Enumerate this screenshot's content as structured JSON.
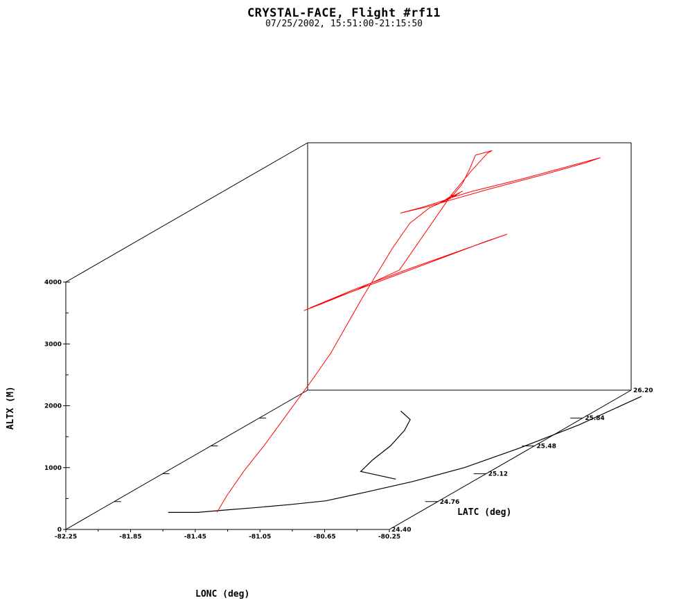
{
  "title": "CRYSTAL-FACE, Flight #rf11",
  "subtitle": "07/25/2002, 15:51:00-21:15:50",
  "chart_data": {
    "type": "line",
    "projection": "3d-oblique",
    "xlabel": "LONC (deg)",
    "ylabel": "ALTX (M)",
    "zlabel": "LATC (deg)",
    "xlim": [
      -82.25,
      -80.25
    ],
    "ylim": [
      0,
      4000
    ],
    "zlim": [
      24.4,
      26.2
    ],
    "x_ticks": [
      "-82.25",
      "-81.85",
      "-81.45",
      "-81.05",
      "-80.65",
      "-80.25"
    ],
    "y_ticks": [
      "0",
      "1000",
      "2000",
      "3000",
      "4000"
    ],
    "z_ticks": [
      "24.40",
      "24.76",
      "25.12",
      "25.48",
      "25.84",
      "26.20"
    ],
    "colors": {
      "flight_track": "#ff0000",
      "coastline": "#000000",
      "axes": "#000000"
    },
    "series": [
      {
        "color": "#ff0000",
        "points": [
          [
            -81.44,
            24.55,
            90
          ],
          [
            -81.42,
            24.6,
            300
          ],
          [
            -81.38,
            24.68,
            600
          ],
          [
            -81.33,
            24.77,
            900
          ],
          [
            -81.28,
            24.9,
            1300
          ],
          [
            -81.24,
            25.02,
            1650
          ],
          [
            -81.21,
            25.12,
            1950
          ],
          [
            -81.19,
            25.22,
            2300
          ],
          [
            -81.18,
            25.32,
            2600
          ],
          [
            -81.18,
            25.45,
            2900
          ],
          [
            -81.16,
            25.52,
            3150
          ],
          [
            -81.12,
            25.6,
            3450
          ],
          [
            -81.05,
            25.66,
            3620
          ],
          [
            -80.97,
            25.72,
            3700
          ],
          [
            -80.96,
            25.73,
            3750
          ],
          [
            -80.99,
            25.69,
            3690
          ],
          [
            -80.93,
            25.74,
            3760
          ],
          [
            -80.98,
            25.7,
            3700
          ],
          [
            -80.92,
            25.75,
            3780
          ],
          [
            -81.0,
            25.68,
            3680
          ],
          [
            -80.94,
            25.73,
            3740
          ],
          [
            -80.97,
            25.7,
            3720
          ],
          [
            -80.89,
            25.79,
            3730
          ],
          [
            -80.69,
            25.93,
            3760
          ],
          [
            -80.4,
            26.15,
            3820
          ],
          [
            -80.45,
            26.1,
            3800
          ],
          [
            -80.6,
            25.99,
            3760
          ],
          [
            -80.82,
            25.82,
            3720
          ],
          [
            -80.96,
            25.72,
            3680
          ],
          [
            -81.06,
            25.65,
            3650
          ],
          [
            -81.16,
            25.58,
            3640
          ],
          [
            -81.08,
            25.64,
            3655
          ],
          [
            -80.97,
            25.72,
            3700
          ],
          [
            -80.93,
            25.76,
            3880
          ],
          [
            -80.9,
            25.78,
            4100
          ],
          [
            -80.88,
            25.8,
            4300
          ],
          [
            -80.82,
            25.85,
            4310
          ],
          [
            -80.84,
            25.84,
            4280
          ],
          [
            -80.9,
            25.79,
            4050
          ],
          [
            -80.97,
            25.73,
            3750
          ],
          [
            -81.06,
            25.45,
            2880
          ],
          [
            -81.2,
            25.3,
            2750
          ],
          [
            -81.34,
            25.2,
            2640
          ],
          [
            -81.4,
            25.15,
            2600
          ],
          [
            -81.3,
            25.23,
            2680
          ],
          [
            -81.05,
            25.4,
            2850
          ],
          [
            -80.85,
            25.55,
            2980
          ],
          [
            -80.7,
            25.66,
            3080
          ],
          [
            -80.62,
            25.72,
            3120
          ],
          [
            -80.75,
            25.62,
            3050
          ],
          [
            -81.0,
            25.45,
            2900
          ],
          [
            -81.2,
            25.3,
            2770
          ],
          [
            -81.38,
            25.17,
            2620
          ]
        ]
      }
    ],
    "coastline": [
      [
        [
          -81.8,
          24.62
        ],
        [
          -81.62,
          24.62
        ],
        [
          -81.48,
          24.65
        ],
        [
          -81.32,
          24.68
        ],
        [
          -81.14,
          24.72
        ],
        [
          -80.95,
          24.77
        ],
        [
          -80.8,
          24.88
        ],
        [
          -80.62,
          25.02
        ],
        [
          -80.45,
          25.2
        ],
        [
          -80.32,
          25.45
        ],
        [
          -80.2,
          25.75
        ],
        [
          -80.12,
          26.12
        ]
      ],
      [
        [
          -80.75,
          25.05
        ],
        [
          -80.9,
          25.1
        ],
        [
          -81.05,
          25.15
        ],
        [
          -81.1,
          25.3
        ],
        [
          -81.14,
          25.48
        ],
        [
          -81.22,
          25.68
        ],
        [
          -81.3,
          25.82
        ],
        [
          -81.45,
          25.93
        ]
      ]
    ]
  }
}
